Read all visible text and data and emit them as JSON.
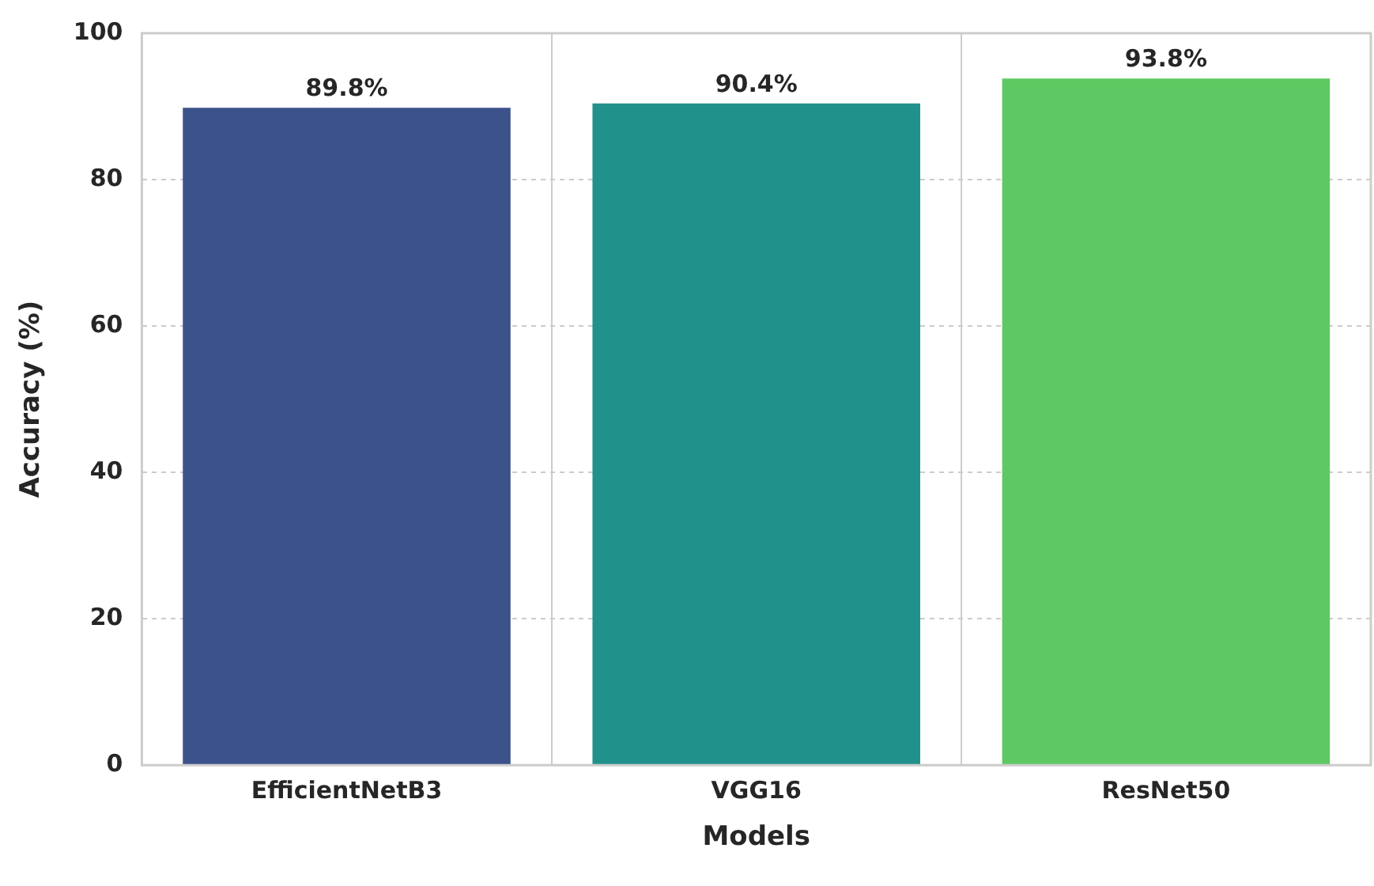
{
  "chart_data": {
    "type": "bar",
    "xlabel": "Models",
    "ylabel": "Accuracy (%)",
    "categories": [
      "EfficientNetB3",
      "VGG16",
      "ResNet50"
    ],
    "values": [
      89.8,
      90.4,
      93.8
    ],
    "colors": [
      "#3b528b",
      "#21918c",
      "#5ec962"
    ],
    "value_labels": [
      "89.8%",
      "90.4%",
      "93.8%"
    ],
    "ylim": [
      0,
      100
    ],
    "yticks": [
      0,
      20,
      40,
      60,
      80,
      100
    ],
    "grid": true,
    "legend": false
  }
}
